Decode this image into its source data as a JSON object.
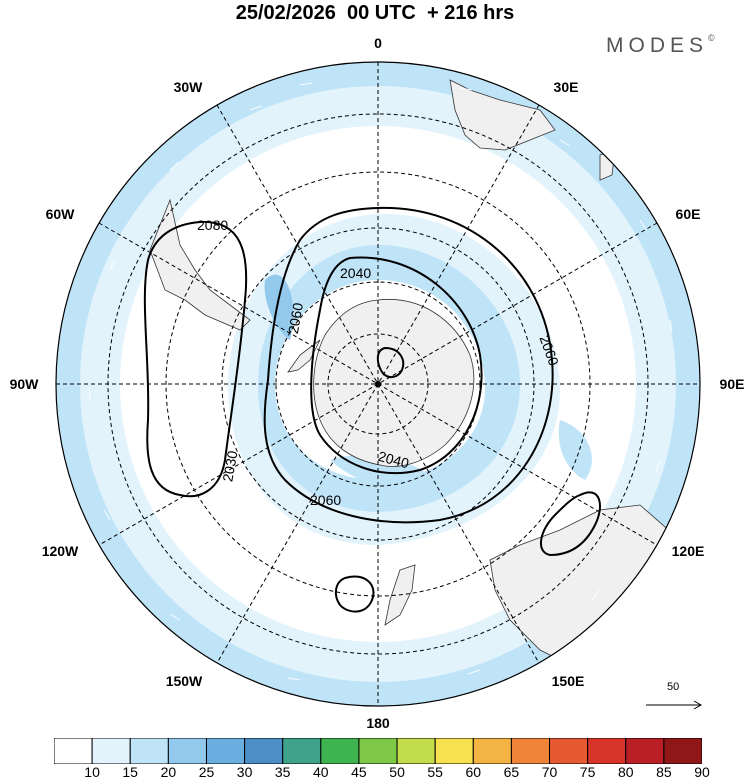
{
  "header": {
    "title": "25/02/2026  00 UTC  + 216 hrs",
    "brand": "MODES",
    "brand_mark": "©"
  },
  "map": {
    "projection": "south-polar-stereographic",
    "longitude_labels": {
      "top": "0",
      "top_right": "30E",
      "right_upper": "60E",
      "right": "90E",
      "right_lower": "120E",
      "bottom_right": "150E",
      "bottom": "180",
      "bottom_left": "150W",
      "left_lower": "120W",
      "left": "90W",
      "left_upper": "60W",
      "top_left": "30W"
    },
    "contour_labels": {
      "c2080": "2080",
      "c2040_top": "2040",
      "c2060_left": "2060",
      "c2060_right": "2060",
      "c2030": "2030",
      "c2040_bottom": "2040",
      "c2060_bottom": "2060"
    }
  },
  "reference_vector": {
    "label": "50"
  },
  "colorbar": {
    "labels": [
      "10",
      "15",
      "20",
      "25",
      "30",
      "35",
      "40",
      "45",
      "50",
      "55",
      "60",
      "65",
      "70",
      "75",
      "80",
      "85",
      "90"
    ],
    "colors": [
      "#ffffff",
      "#e2f3fc",
      "#bfe4f8",
      "#92c9ec",
      "#6aaee0",
      "#4d8ec6",
      "#3ea38a",
      "#3fb34f",
      "#7ec848",
      "#c3dc4b",
      "#f5e24e",
      "#f4b443",
      "#f0853a",
      "#e65a32",
      "#d83429",
      "#b91f24",
      "#8f1718"
    ]
  }
}
